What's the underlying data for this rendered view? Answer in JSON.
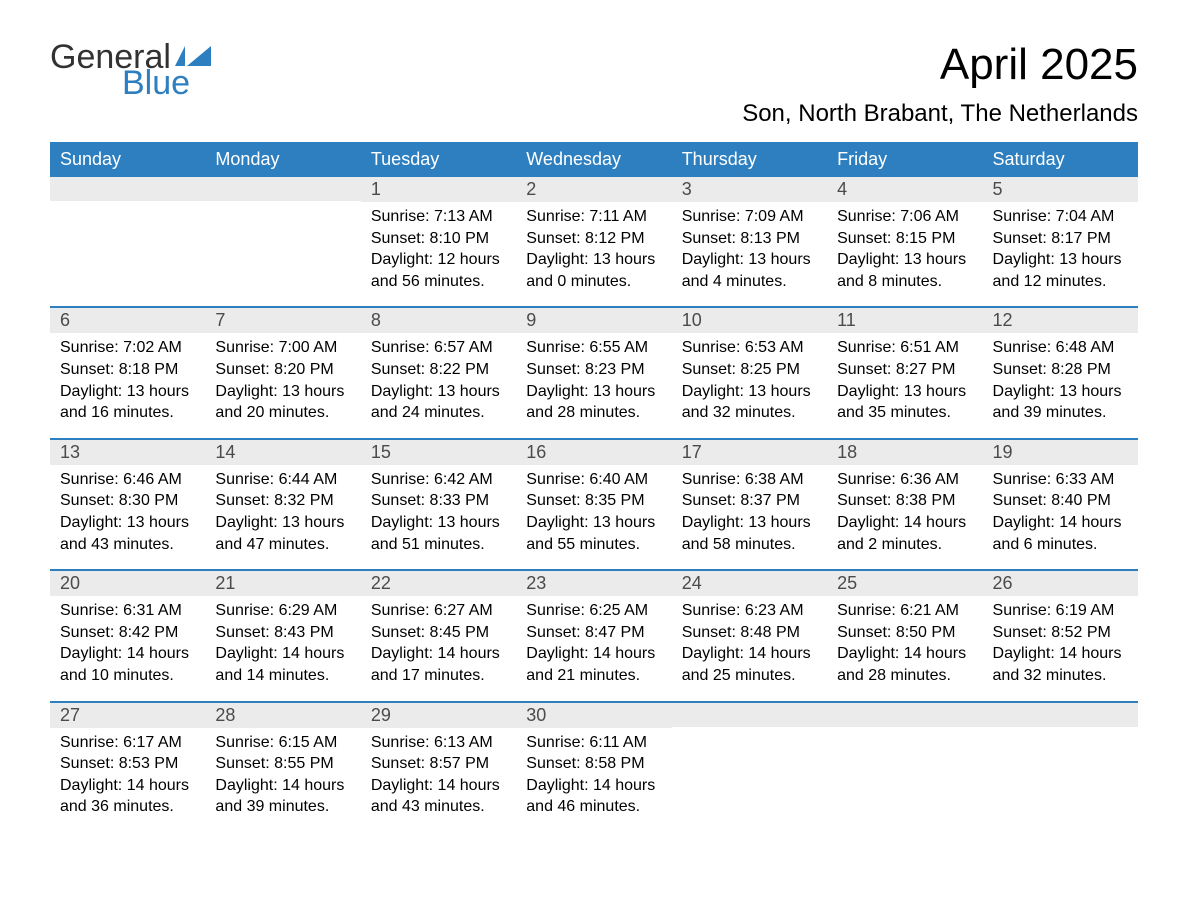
{
  "logo": {
    "general": "General",
    "blue": "Blue",
    "flag_color": "#2d7fc0"
  },
  "title": "April 2025",
  "location": "Son, North Brabant, The Netherlands",
  "colors": {
    "header_bg": "#2d7fc0",
    "header_text": "#ffffff",
    "daynum_bg": "#ebebeb",
    "daynum_text": "#4b4b4b",
    "border": "#2d7fc0",
    "body_text": "#000000",
    "page_bg": "#ffffff"
  },
  "day_names": [
    "Sunday",
    "Monday",
    "Tuesday",
    "Wednesday",
    "Thursday",
    "Friday",
    "Saturday"
  ],
  "weeks": [
    [
      {
        "day": "",
        "sunrise": "",
        "sunset": "",
        "daylight": ""
      },
      {
        "day": "",
        "sunrise": "",
        "sunset": "",
        "daylight": ""
      },
      {
        "day": "1",
        "sunrise": "Sunrise: 7:13 AM",
        "sunset": "Sunset: 8:10 PM",
        "daylight": "Daylight: 12 hours and 56 minutes."
      },
      {
        "day": "2",
        "sunrise": "Sunrise: 7:11 AM",
        "sunset": "Sunset: 8:12 PM",
        "daylight": "Daylight: 13 hours and 0 minutes."
      },
      {
        "day": "3",
        "sunrise": "Sunrise: 7:09 AM",
        "sunset": "Sunset: 8:13 PM",
        "daylight": "Daylight: 13 hours and 4 minutes."
      },
      {
        "day": "4",
        "sunrise": "Sunrise: 7:06 AM",
        "sunset": "Sunset: 8:15 PM",
        "daylight": "Daylight: 13 hours and 8 minutes."
      },
      {
        "day": "5",
        "sunrise": "Sunrise: 7:04 AM",
        "sunset": "Sunset: 8:17 PM",
        "daylight": "Daylight: 13 hours and 12 minutes."
      }
    ],
    [
      {
        "day": "6",
        "sunrise": "Sunrise: 7:02 AM",
        "sunset": "Sunset: 8:18 PM",
        "daylight": "Daylight: 13 hours and 16 minutes."
      },
      {
        "day": "7",
        "sunrise": "Sunrise: 7:00 AM",
        "sunset": "Sunset: 8:20 PM",
        "daylight": "Daylight: 13 hours and 20 minutes."
      },
      {
        "day": "8",
        "sunrise": "Sunrise: 6:57 AM",
        "sunset": "Sunset: 8:22 PM",
        "daylight": "Daylight: 13 hours and 24 minutes."
      },
      {
        "day": "9",
        "sunrise": "Sunrise: 6:55 AM",
        "sunset": "Sunset: 8:23 PM",
        "daylight": "Daylight: 13 hours and 28 minutes."
      },
      {
        "day": "10",
        "sunrise": "Sunrise: 6:53 AM",
        "sunset": "Sunset: 8:25 PM",
        "daylight": "Daylight: 13 hours and 32 minutes."
      },
      {
        "day": "11",
        "sunrise": "Sunrise: 6:51 AM",
        "sunset": "Sunset: 8:27 PM",
        "daylight": "Daylight: 13 hours and 35 minutes."
      },
      {
        "day": "12",
        "sunrise": "Sunrise: 6:48 AM",
        "sunset": "Sunset: 8:28 PM",
        "daylight": "Daylight: 13 hours and 39 minutes."
      }
    ],
    [
      {
        "day": "13",
        "sunrise": "Sunrise: 6:46 AM",
        "sunset": "Sunset: 8:30 PM",
        "daylight": "Daylight: 13 hours and 43 minutes."
      },
      {
        "day": "14",
        "sunrise": "Sunrise: 6:44 AM",
        "sunset": "Sunset: 8:32 PM",
        "daylight": "Daylight: 13 hours and 47 minutes."
      },
      {
        "day": "15",
        "sunrise": "Sunrise: 6:42 AM",
        "sunset": "Sunset: 8:33 PM",
        "daylight": "Daylight: 13 hours and 51 minutes."
      },
      {
        "day": "16",
        "sunrise": "Sunrise: 6:40 AM",
        "sunset": "Sunset: 8:35 PM",
        "daylight": "Daylight: 13 hours and 55 minutes."
      },
      {
        "day": "17",
        "sunrise": "Sunrise: 6:38 AM",
        "sunset": "Sunset: 8:37 PM",
        "daylight": "Daylight: 13 hours and 58 minutes."
      },
      {
        "day": "18",
        "sunrise": "Sunrise: 6:36 AM",
        "sunset": "Sunset: 8:38 PM",
        "daylight": "Daylight: 14 hours and 2 minutes."
      },
      {
        "day": "19",
        "sunrise": "Sunrise: 6:33 AM",
        "sunset": "Sunset: 8:40 PM",
        "daylight": "Daylight: 14 hours and 6 minutes."
      }
    ],
    [
      {
        "day": "20",
        "sunrise": "Sunrise: 6:31 AM",
        "sunset": "Sunset: 8:42 PM",
        "daylight": "Daylight: 14 hours and 10 minutes."
      },
      {
        "day": "21",
        "sunrise": "Sunrise: 6:29 AM",
        "sunset": "Sunset: 8:43 PM",
        "daylight": "Daylight: 14 hours and 14 minutes."
      },
      {
        "day": "22",
        "sunrise": "Sunrise: 6:27 AM",
        "sunset": "Sunset: 8:45 PM",
        "daylight": "Daylight: 14 hours and 17 minutes."
      },
      {
        "day": "23",
        "sunrise": "Sunrise: 6:25 AM",
        "sunset": "Sunset: 8:47 PM",
        "daylight": "Daylight: 14 hours and 21 minutes."
      },
      {
        "day": "24",
        "sunrise": "Sunrise: 6:23 AM",
        "sunset": "Sunset: 8:48 PM",
        "daylight": "Daylight: 14 hours and 25 minutes."
      },
      {
        "day": "25",
        "sunrise": "Sunrise: 6:21 AM",
        "sunset": "Sunset: 8:50 PM",
        "daylight": "Daylight: 14 hours and 28 minutes."
      },
      {
        "day": "26",
        "sunrise": "Sunrise: 6:19 AM",
        "sunset": "Sunset: 8:52 PM",
        "daylight": "Daylight: 14 hours and 32 minutes."
      }
    ],
    [
      {
        "day": "27",
        "sunrise": "Sunrise: 6:17 AM",
        "sunset": "Sunset: 8:53 PM",
        "daylight": "Daylight: 14 hours and 36 minutes."
      },
      {
        "day": "28",
        "sunrise": "Sunrise: 6:15 AM",
        "sunset": "Sunset: 8:55 PM",
        "daylight": "Daylight: 14 hours and 39 minutes."
      },
      {
        "day": "29",
        "sunrise": "Sunrise: 6:13 AM",
        "sunset": "Sunset: 8:57 PM",
        "daylight": "Daylight: 14 hours and 43 minutes."
      },
      {
        "day": "30",
        "sunrise": "Sunrise: 6:11 AM",
        "sunset": "Sunset: 8:58 PM",
        "daylight": "Daylight: 14 hours and 46 minutes."
      },
      {
        "day": "",
        "sunrise": "",
        "sunset": "",
        "daylight": ""
      },
      {
        "day": "",
        "sunrise": "",
        "sunset": "",
        "daylight": ""
      },
      {
        "day": "",
        "sunrise": "",
        "sunset": "",
        "daylight": ""
      }
    ]
  ]
}
